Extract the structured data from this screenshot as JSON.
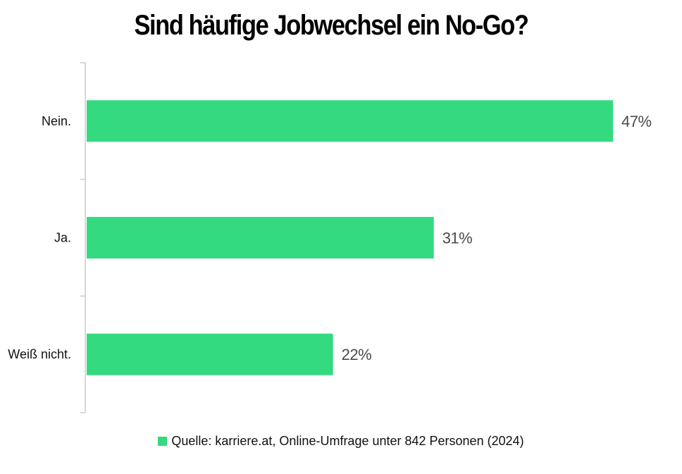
{
  "chart_data": {
    "type": "bar",
    "orientation": "horizontal",
    "title": "Sind häufige Jobwechsel ein No-Go?",
    "categories": [
      "Nein.",
      "Ja.",
      "Weiß nicht."
    ],
    "values": [
      47,
      31,
      22
    ],
    "value_labels": [
      "47%",
      "31%",
      "22%"
    ],
    "xlim": [
      0,
      47
    ],
    "legend": {
      "label": "Quelle: karriere.at, Online-Umfrage unter 842 Personen (2024)",
      "position": "bottom-center"
    },
    "bar_color": "#34da7f",
    "axis_color": "#cccccc",
    "grid": false
  }
}
